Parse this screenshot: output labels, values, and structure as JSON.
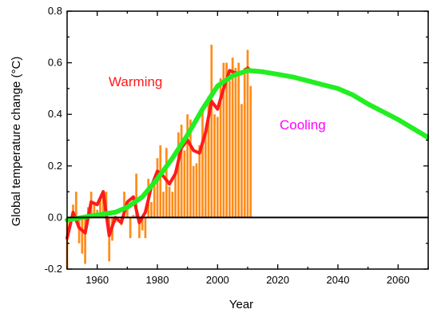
{
  "chart_data": {
    "type": "bar",
    "xlabel": "Year",
    "ylabel": "Global temperature change (°C)",
    "xlim": [
      1950,
      2070
    ],
    "ylim": [
      -0.2,
      0.8
    ],
    "xticks": [
      1960,
      1980,
      2000,
      2020,
      2040,
      2060
    ],
    "xtick_labels": [
      "1960",
      "1980",
      "2000",
      "2020",
      "2040",
      "2060"
    ],
    "yticks": [
      -0.2,
      0.0,
      0.2,
      0.4,
      0.6,
      0.8
    ],
    "ytick_labels": [
      "-0.2",
      "0.0",
      "0.2",
      "0.4",
      "0.6",
      "0.8"
    ],
    "grid": false,
    "annotations": [
      {
        "text": "Warming",
        "x": 1984,
        "y": 0.5,
        "color": "#ff1a1a"
      },
      {
        "text": "Cooling",
        "x": 2025,
        "y": 0.35,
        "color": "#ff00ff"
      }
    ],
    "series": [
      {
        "kind": "bar",
        "color": "#ff8c1a",
        "x": [
          1950,
          1951,
          1952,
          1953,
          1954,
          1955,
          1956,
          1957,
          1958,
          1959,
          1960,
          1961,
          1962,
          1963,
          1964,
          1965,
          1966,
          1967,
          1968,
          1969,
          1970,
          1971,
          1972,
          1973,
          1974,
          1975,
          1976,
          1977,
          1978,
          1979,
          1980,
          1981,
          1982,
          1983,
          1984,
          1985,
          1986,
          1987,
          1988,
          1989,
          1990,
          1991,
          1992,
          1993,
          1994,
          1995,
          1996,
          1997,
          1998,
          1999,
          2000,
          2001,
          2002,
          2003,
          2004,
          2005,
          2006,
          2007,
          2008,
          2009,
          2010,
          2011
        ],
        "values": [
          -0.2,
          -0.04,
          0.05,
          0.1,
          -0.1,
          -0.14,
          -0.18,
          0.04,
          0.1,
          0.06,
          0.03,
          0.08,
          0.1,
          0.1,
          -0.17,
          -0.09,
          -0.02,
          0.0,
          -0.03,
          0.1,
          0.05,
          -0.08,
          0.01,
          0.17,
          -0.08,
          -0.05,
          -0.08,
          0.15,
          0.06,
          0.15,
          0.23,
          0.28,
          0.1,
          0.27,
          0.12,
          0.1,
          0.18,
          0.33,
          0.36,
          0.26,
          0.4,
          0.38,
          0.2,
          0.21,
          0.28,
          0.43,
          0.33,
          0.47,
          0.67,
          0.4,
          0.39,
          0.54,
          0.6,
          0.6,
          0.53,
          0.62,
          0.58,
          0.6,
          0.44,
          0.58,
          0.65,
          0.51
        ]
      },
      {
        "kind": "line",
        "color": "#ff1a1a",
        "x": [
          1950,
          1952,
          1954,
          1956,
          1958,
          1960,
          1962,
          1964,
          1966,
          1968,
          1970,
          1972,
          1974,
          1976,
          1978,
          1980,
          1982,
          1984,
          1986,
          1988,
          1990,
          1992,
          1994,
          1996,
          1998,
          2000,
          2002,
          2004,
          2006,
          2008,
          2010,
          2011
        ],
        "values": [
          -0.08,
          0.02,
          -0.04,
          -0.06,
          0.06,
          0.05,
          0.1,
          -0.07,
          0.0,
          -0.02,
          0.06,
          0.08,
          -0.02,
          0.02,
          0.12,
          0.18,
          0.16,
          0.13,
          0.17,
          0.27,
          0.3,
          0.26,
          0.25,
          0.33,
          0.45,
          0.42,
          0.5,
          0.57,
          0.56,
          0.56,
          0.58,
          0.57
        ]
      },
      {
        "kind": "line",
        "color": "#22ee22",
        "x": [
          1950,
          1960,
          1966,
          1970,
          1975,
          1980,
          1985,
          1990,
          1995,
          2000,
          2005,
          2010,
          2015,
          2020,
          2025,
          2030,
          2035,
          2040,
          2045,
          2050,
          2055,
          2060,
          2065,
          2070
        ],
        "values": [
          -0.01,
          0.01,
          0.02,
          0.04,
          0.08,
          0.15,
          0.23,
          0.32,
          0.42,
          0.51,
          0.55,
          0.57,
          0.565,
          0.555,
          0.545,
          0.53,
          0.515,
          0.5,
          0.475,
          0.44,
          0.41,
          0.38,
          0.345,
          0.31
        ]
      }
    ]
  }
}
